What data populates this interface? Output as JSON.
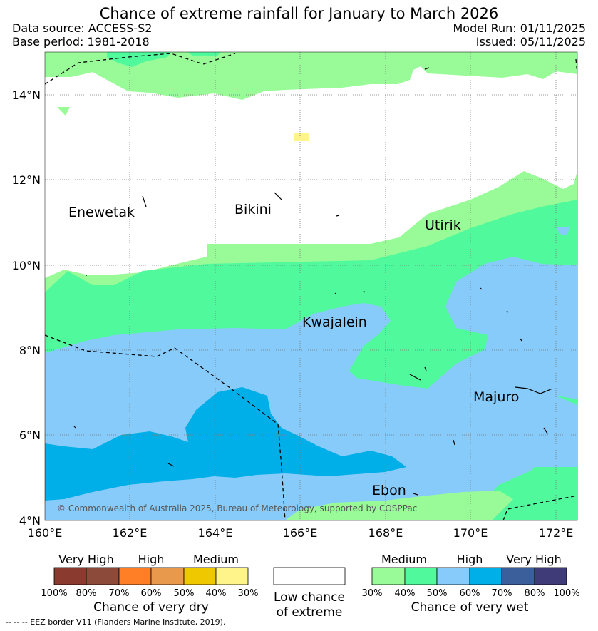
{
  "title": "Chance of extreme rainfall for January to March 2026",
  "meta": {
    "data_source": "Data source: ACCESS-S2",
    "base_period": "Base period: 1981-2018",
    "model_run": "Model Run: 01/11/2025",
    "issued": "Issued: 05/11/2025"
  },
  "map": {
    "lat_ticks": [
      "14°N",
      "12°N",
      "10°N",
      "8°N",
      "6°N",
      "4°N"
    ],
    "lon_ticks": [
      "160°E",
      "162°E",
      "164°E",
      "166°E",
      "168°E",
      "170°E",
      "172°E"
    ],
    "places": {
      "enewetak": "Enewetak",
      "bikini": "Bikini",
      "utirik": "Utirik",
      "kwajalein": "Kwajalein",
      "majuro": "Majuro",
      "ebon": "Ebon"
    },
    "copyright": "© Commonwealth of Australia 2025, Bureau of Meteorology, supported by COSPPac"
  },
  "legend": {
    "dry": {
      "categories": [
        "Very High",
        "High",
        "Medium"
      ],
      "percent_labels": [
        "100%",
        "80%",
        "70%",
        "60%",
        "50%",
        "40%",
        "30%"
      ],
      "colors": [
        "#8b3a2f",
        "#8b4a3a",
        "#ff7f27",
        "#e8994c",
        "#f0c800",
        "#fff48a"
      ],
      "title": "Chance of very dry"
    },
    "neutral": {
      "line1": "Low chance",
      "line2": "of extreme",
      "color": "#ffffff"
    },
    "wet": {
      "categories": [
        "Medium",
        "High",
        "Very High"
      ],
      "percent_labels": [
        "30%",
        "40%",
        "50%",
        "60%",
        "70%",
        "80%",
        "100%"
      ],
      "colors": [
        "#98fb98",
        "#50fa9c",
        "#87cbfa",
        "#00aee8",
        "#3a5f9a",
        "#3e3b78"
      ],
      "title": "Chance of very wet"
    }
  },
  "eez_note": "-- -- -- EEZ border V11 (Flanders Marine Institute, 2019)."
}
